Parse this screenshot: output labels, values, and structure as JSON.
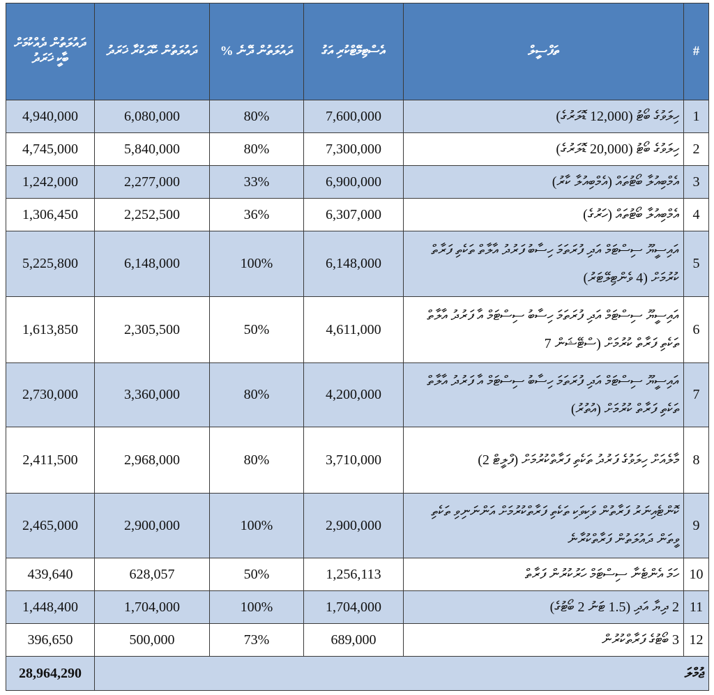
{
  "table": {
    "header": [
      "#",
      "ތަފްސީލް",
      "އެސްޓިމޭޓްކުރި އަގު",
      "ދައުލަތުން ދޭނެ %",
      "ދައުލަތުން ހޭދަކުރާ ޚަރަދު",
      "ދައުލަތުން ދެއްކުމަށް ބާކީ ޚަރަދު"
    ],
    "rows": [
      [
        "1",
        "ހިލަވުގެ ބޯޓު (12,000 ޑޮލަރުގެ)",
        "7,600,000",
        "80%",
        "6,080,000",
        "4,940,000"
      ],
      [
        "2",
        "ހިލަވުގެ ބޯޓު (20,000 ޑޮލަރުގެ)",
        "7,300,000",
        "80%",
        "5,840,000",
        "4,745,000"
      ],
      [
        "3",
        "އެމްބިއުލާ ބޯޓުތައް (އެމްބިއުލާ ކާރު)",
        "6,900,000",
        "33%",
        "2,277,000",
        "1,242,000"
      ],
      [
        "4",
        "އެމްބިއުލާ ބޯޓުތައް (ހަރުގެ)",
        "6,307,000",
        "36%",
        "2,252,500",
        "1,306,450"
      ],
      [
        "5",
        "އައިސީޔޫ ސިސްޓަމް އަދި ފުރަތަމަ ހިސާބު ފަރުދު އާލާތް ތަކެތި ފަރާތް ކުރުމަށް (4 ވެންޓިލޭޓަރު)",
        "6,148,000",
        "100%",
        "6,148,000",
        "5,225,800"
      ],
      [
        "6",
        "އައިސީޔޫ ސިސްޓަމް އަދި ފުރަތަމަ ހިސާބު ސިސްޓަމް އާ ފަރުދު އާލާތް ތަކެތި ފަރާތް ކުރުމަށް (ސްޓޭޝަން 7",
        "4,611,000",
        "50%",
        "2,305,500",
        "1,613,850"
      ],
      [
        "7",
        "އައިސީޔޫ ސިސްޓަމް އަދި ފުރަތަމަ ހިސާބު ސިސްޓަމް އާ ފަރުދު އާލާތް ތަކެތި ފަރާތް ކުރުމަށް (އުތުރު)",
        "4,200,000",
        "80%",
        "3,360,000",
        "2,730,000"
      ],
      [
        "8",
        "މާލެއަށް ހިލަވުގެ ފަރުދު ތަކެތި ފަރާތްކުރުމަށް (ފްލީޓް 2)",
        "3,710,000",
        "80%",
        "2,968,000",
        "2,411,500"
      ],
      [
        "9",
        "ކޮންޓެއިނަރު ފަރާތުން ވަކިވަކި ތަކެތި ފަރާތްކުރުމަށް އަންނަނިވި ތަކެތި ވީތަން ދައުލަތުން ފަރާތްކުރާނެ",
        "2,900,000",
        "100%",
        "2,900,000",
        "2,465,000"
      ],
      [
        "10",
        "ހަމަ އެންޓެނާ ސިސްޓަމް ހަރުކުރުން ފަރާތް",
        "1,256,113",
        "50%",
        "628,057",
        "439,640"
      ],
      [
        "11",
        "2 ދިޔާ އަދި (1.5 ޓަނު 2 ބޯޓުގެ)",
        "1,704,000",
        "100%",
        "1,704,000",
        "1,448,400"
      ],
      [
        "12",
        "3 ބޯޓުގެ ފަރާތްކުރުން",
        "689,000",
        "73%",
        "500,000",
        "396,650"
      ]
    ],
    "total": {
      "label": "ޖުމްލަ",
      "value": "28,964,290"
    }
  }
}
